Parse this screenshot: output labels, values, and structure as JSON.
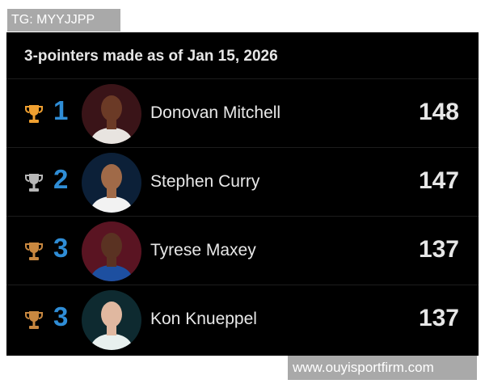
{
  "watermarks": {
    "top": "TG: MYYJJPP",
    "bottom": "www.ouyisportfirm.com"
  },
  "title": "3-pointers made as of Jan 15, 2026",
  "players": [
    {
      "rank": "1",
      "name": "Donovan Mitchell",
      "value": "148",
      "trophy_color": "#f0a030",
      "avatar_bg": "#3a1418",
      "skin": "#6b3a26",
      "jersey": "#e8e4e0"
    },
    {
      "rank": "2",
      "name": "Stephen Curry",
      "value": "147",
      "trophy_color": "#b8b8b8",
      "avatar_bg": "#0c2038",
      "skin": "#a06a48",
      "jersey": "#f2f2f2"
    },
    {
      "rank": "3",
      "name": "Tyrese Maxey",
      "value": "137",
      "trophy_color": "#c98840",
      "avatar_bg": "#5a1422",
      "skin": "#5a3222",
      "jersey": "#1d4fa0"
    },
    {
      "rank": "3",
      "name": "Kon Knueppel",
      "value": "137",
      "trophy_color": "#c98840",
      "avatar_bg": "#0e2a30",
      "skin": "#e0b8a0",
      "jersey": "#e8f0ee"
    }
  ]
}
